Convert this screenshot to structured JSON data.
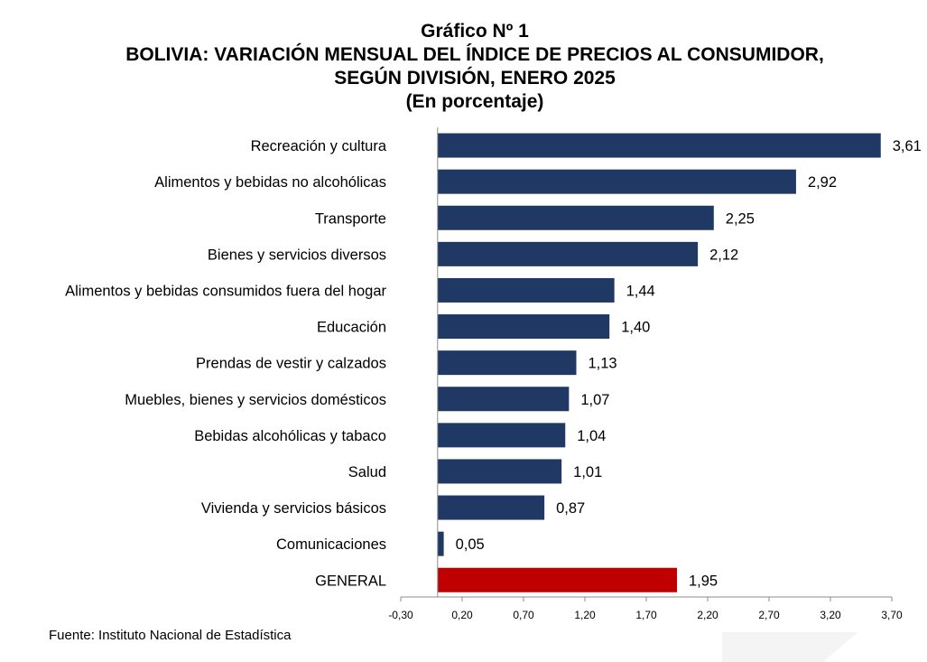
{
  "title_lines": [
    "Gráfico Nº 1",
    "BOLIVIA: VARIACIÓN MENSUAL DEL ÍNDICE DE PRECIOS AL CONSUMIDOR,",
    "SEGÚN DIVISIÓN, ENERO 2025",
    "(En porcentaje)"
  ],
  "source": "Fuente: Instituto Nacional de Estadística",
  "colors": {
    "bar": "#1f3864",
    "highlight": "#c00000",
    "axis": "#8c8c8c"
  },
  "chart_data": {
    "type": "bar",
    "orientation": "horizontal",
    "categories": [
      "Recreación y cultura",
      "Alimentos y bebidas no alcohólicas",
      "Transporte",
      "Bienes y servicios diversos",
      "Alimentos y bebidas consumidos fuera del hogar",
      "Educación",
      "Prendas de vestir y calzados",
      "Muebles, bienes y servicios domésticos",
      "Bebidas alcohólicas y tabaco",
      "Salud",
      "Vivienda y servicios básicos",
      "Comunicaciones",
      "GENERAL"
    ],
    "values": [
      3.61,
      2.92,
      2.25,
      2.12,
      1.44,
      1.4,
      1.13,
      1.07,
      1.04,
      1.01,
      0.87,
      0.05,
      1.95
    ],
    "value_labels": [
      "3,61",
      "2,92",
      "2,25",
      "2,12",
      "1,44",
      "1,40",
      "1,13",
      "1,07",
      "1,04",
      "1,01",
      "0,87",
      "0,05",
      "1,95"
    ],
    "highlight_category": "GENERAL",
    "xlim": [
      -0.3,
      3.7
    ],
    "xticks": [
      -0.3,
      0.2,
      0.7,
      1.2,
      1.7,
      2.2,
      2.7,
      3.2,
      3.7
    ],
    "xtick_labels": [
      "-0,30",
      "0,20",
      "0,70",
      "1,20",
      "1,70",
      "2,20",
      "2,70",
      "3,20",
      "3,70"
    ],
    "grid": false,
    "legend": "none"
  }
}
